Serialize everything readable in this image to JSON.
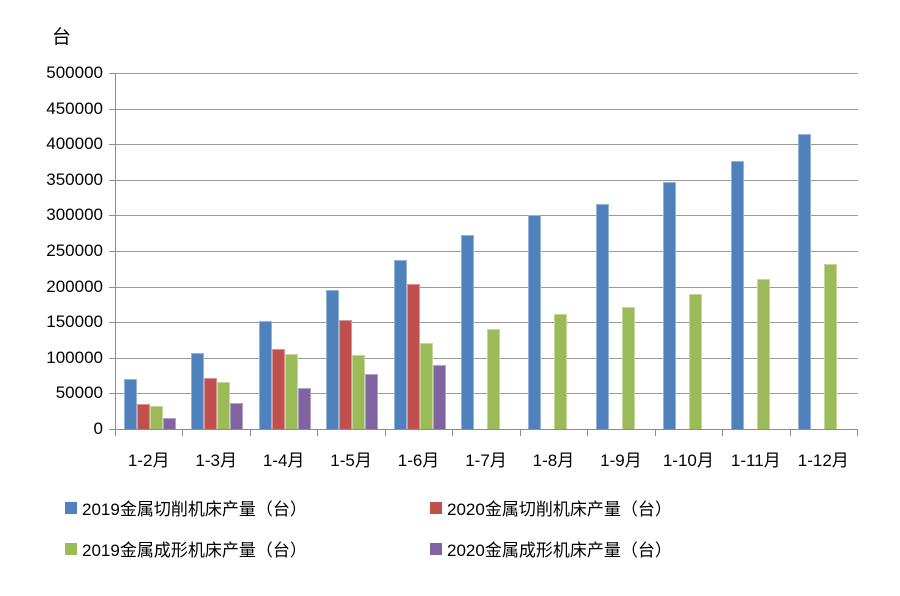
{
  "chart_data": {
    "type": "bar",
    "title": "",
    "xlabel": "",
    "ylabel": "台",
    "categories": [
      "1-2月",
      "1-3月",
      "1-4月",
      "1-5月",
      "1-6月",
      "1-7月",
      "1-8月",
      "1-9月",
      "1-10月",
      "1-11月",
      "1-12月"
    ],
    "series": [
      {
        "name": "2019金属切削机床产量（台）",
        "color": "#4F81BD",
        "border": "#95B3D7",
        "values": [
          70000,
          107000,
          152000,
          195000,
          238000,
          272000,
          300000,
          316000,
          347000,
          376000,
          415000
        ]
      },
      {
        "name": "2020金属切削机床产量（台）",
        "color": "#C0504D",
        "border": "#D99694",
        "values": [
          35000,
          71000,
          113000,
          153000,
          204000,
          null,
          null,
          null,
          null,
          null,
          null
        ]
      },
      {
        "name": "2019金属成形机床产量（台）",
        "color": "#9BBB59",
        "border": "#C3D69B",
        "values": [
          32000,
          66000,
          105000,
          104000,
          121000,
          141000,
          161000,
          172000,
          190000,
          211000,
          232000
        ]
      },
      {
        "name": "2020金属成形机床产量（台）",
        "color": "#8064A2",
        "border": "#B3A2C7",
        "values": [
          16000,
          36000,
          58000,
          77000,
          90000,
          null,
          null,
          null,
          null,
          null,
          null
        ]
      }
    ],
    "ylim": [
      0,
      500000
    ],
    "y_tick_step": 50000,
    "y_tick_labels": [
      "500000",
      "450000",
      "400000",
      "350000",
      "300000",
      "250000",
      "200000",
      "150000",
      "100000",
      "50000",
      "0"
    ],
    "grid": true,
    "legend_position": "bottom",
    "gridline_color": "#9A9A9A",
    "axis_color": "#8C8C8C"
  }
}
